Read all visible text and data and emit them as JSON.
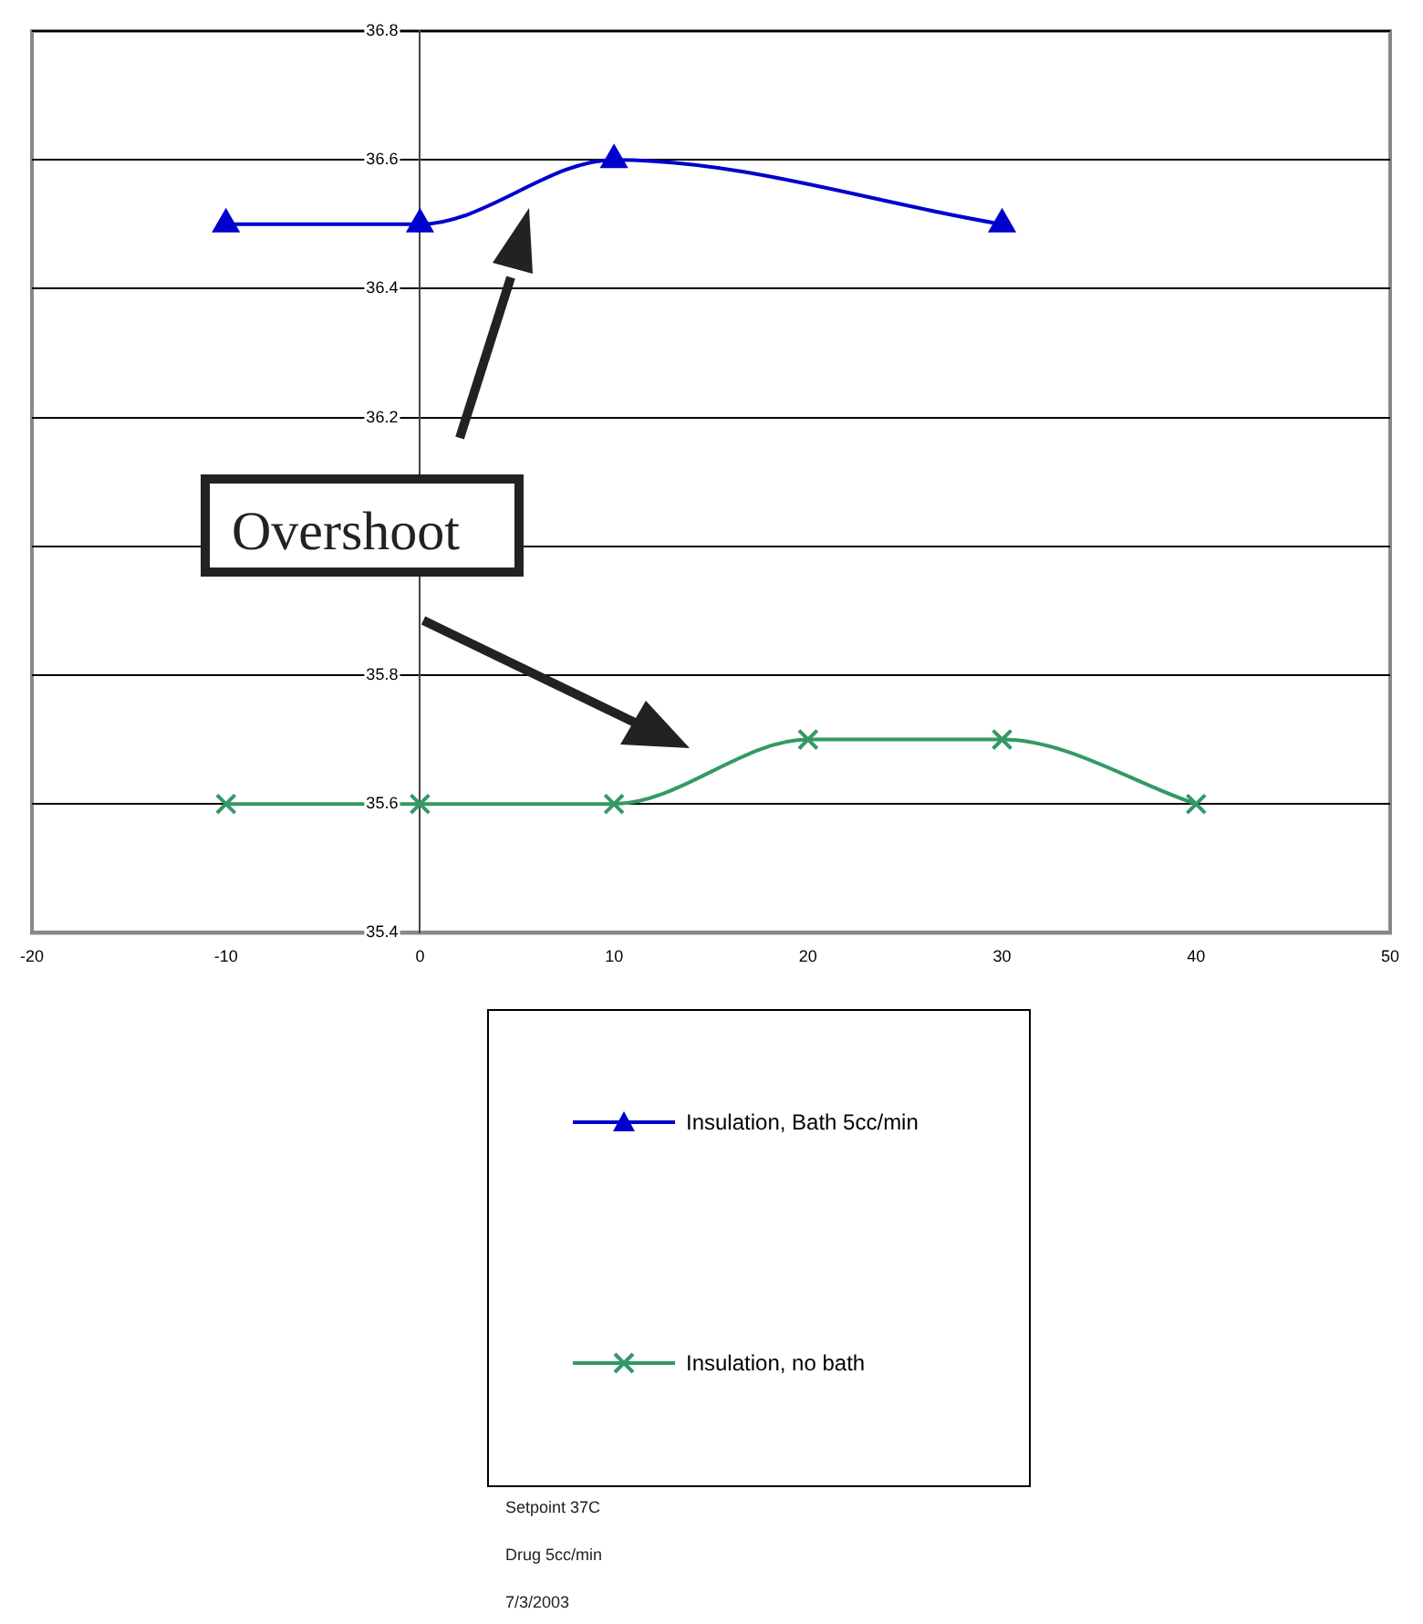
{
  "chart_data": {
    "type": "line",
    "series": [
      {
        "name": "Insulation, Bath 5cc/min",
        "color": "#0000cc",
        "marker": "triangle",
        "x": [
          -10,
          0,
          10,
          30
        ],
        "values": [
          36.5,
          36.5,
          36.6,
          36.5
        ]
      },
      {
        "name": "Insulation, no bath",
        "color": "#339966",
        "marker": "cross",
        "x": [
          -10,
          0,
          10,
          20,
          30,
          40
        ],
        "values": [
          35.6,
          35.6,
          35.6,
          35.7,
          35.7,
          35.6
        ]
      }
    ],
    "xlim": [
      -20,
      50
    ],
    "xticks": [
      -20,
      -10,
      0,
      10,
      20,
      30,
      40,
      50
    ],
    "ylim": [
      35.4,
      36.8
    ],
    "yticks": [
      35.4,
      35.6,
      35.8,
      {
        "value": 36,
        "label": null
      },
      36.2,
      36.4,
      36.6,
      36.8
    ],
    "grid": "y",
    "legend": "bottom",
    "annotations": [
      "Overshoot",
      "Setpoint 37C",
      "Drug 5cc/min",
      "7/3/2003"
    ]
  }
}
